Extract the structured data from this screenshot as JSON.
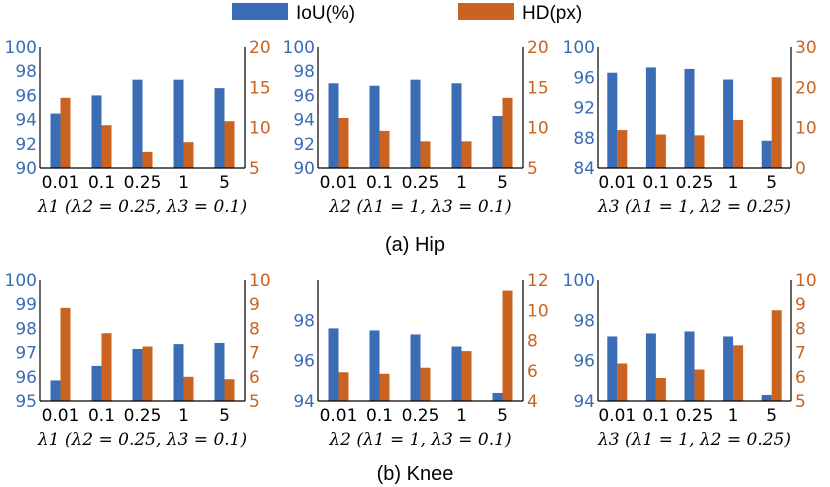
{
  "legend": [
    {
      "label": "IoU(%)",
      "color": "#3a6db5"
    },
    {
      "label": "HD(px)",
      "color": "#c9631f"
    }
  ],
  "captions": [
    "(a) Hip",
    "(b) Knee"
  ],
  "colors": {
    "iou": "#3a6db5",
    "hd": "#c9631f",
    "axis": "#000000"
  },
  "chart_data": [
    {
      "type": "bar",
      "group": "Hip",
      "categories": [
        "0.01",
        "0.1",
        "0.25",
        "1",
        "5"
      ],
      "xlabel": "λ1 (λ2 = 0.25, λ3 = 0.1)",
      "series": [
        {
          "name": "IoU(%)",
          "axis": "left",
          "values": [
            94.5,
            96.0,
            97.3,
            97.3,
            96.6
          ]
        },
        {
          "name": "HD(px)",
          "axis": "right",
          "values": [
            13.7,
            10.3,
            7.0,
            8.2,
            10.8
          ]
        }
      ],
      "ylim_left": [
        90,
        100
      ],
      "yticks_left": [
        90,
        92,
        94,
        96,
        98,
        100
      ],
      "ylim_right": [
        5,
        20
      ],
      "yticks_right": [
        5,
        10,
        15,
        20
      ]
    },
    {
      "type": "bar",
      "group": "Hip",
      "categories": [
        "0.01",
        "0.1",
        "0.25",
        "1",
        "5"
      ],
      "xlabel": "λ2 (λ1 = 1, λ3 = 0.1)",
      "series": [
        {
          "name": "IoU(%)",
          "axis": "left",
          "values": [
            97.0,
            96.8,
            97.3,
            97.0,
            94.3
          ]
        },
        {
          "name": "HD(px)",
          "axis": "right",
          "values": [
            11.2,
            9.6,
            8.3,
            8.3,
            13.7
          ]
        }
      ],
      "ylim_left": [
        90,
        100
      ],
      "yticks_left": [
        90,
        92,
        94,
        96,
        98,
        100
      ],
      "ylim_right": [
        5,
        20
      ],
      "yticks_right": [
        5,
        10,
        15,
        20
      ]
    },
    {
      "type": "bar",
      "group": "Hip",
      "categories": [
        "0.01",
        "0.1",
        "0.25",
        "1",
        "5"
      ],
      "xlabel": "λ3 (λ1 = 1, λ2 = 0.25)",
      "series": [
        {
          "name": "IoU(%)",
          "axis": "left",
          "values": [
            96.6,
            97.3,
            97.1,
            95.7,
            87.6
          ]
        },
        {
          "name": "HD(px)",
          "axis": "right",
          "values": [
            9.4,
            8.3,
            8.1,
            11.9,
            22.5
          ]
        }
      ],
      "ylim_left": [
        84,
        100
      ],
      "yticks_left": [
        84,
        88,
        92,
        96,
        100
      ],
      "ylim_right": [
        0,
        30
      ],
      "yticks_right": [
        0,
        10,
        20,
        30
      ]
    },
    {
      "type": "bar",
      "group": "Knee",
      "categories": [
        "0.01",
        "0.1",
        "0.25",
        "1",
        "5"
      ],
      "xlabel": "λ1 (λ2 = 0.25, λ3 = 0.1)",
      "series": [
        {
          "name": "IoU(%)",
          "axis": "left",
          "values": [
            95.85,
            96.45,
            97.15,
            97.35,
            97.4
          ]
        },
        {
          "name": "HD(px)",
          "axis": "right",
          "values": [
            8.85,
            7.8,
            7.25,
            6.0,
            5.9
          ]
        }
      ],
      "ylim_left": [
        95,
        100
      ],
      "yticks_left": [
        95,
        96,
        97,
        98,
        99,
        100
      ],
      "ylim_right": [
        5,
        10
      ],
      "yticks_right": [
        5,
        6,
        7,
        8,
        9,
        10
      ]
    },
    {
      "type": "bar",
      "group": "Knee",
      "categories": [
        "0.01",
        "0.1",
        "0.25",
        "1",
        "5"
      ],
      "xlabel": "λ2 (λ1 = 1, λ3 = 0.1)",
      "series": [
        {
          "name": "IoU(%)",
          "axis": "left",
          "values": [
            97.6,
            97.5,
            97.3,
            96.7,
            94.4
          ]
        },
        {
          "name": "HD(px)",
          "axis": "right",
          "values": [
            5.9,
            5.8,
            6.2,
            7.3,
            11.3
          ]
        }
      ],
      "ylim_left": [
        94,
        100
      ],
      "yticks_left": [
        94,
        96,
        98
      ],
      "ylim_right": [
        4,
        12
      ],
      "yticks_right": [
        4,
        6,
        8,
        10,
        12
      ]
    },
    {
      "type": "bar",
      "group": "Knee",
      "categories": [
        "0.01",
        "0.1",
        "0.25",
        "1",
        "5"
      ],
      "xlabel": "λ3 (λ1 = 1, λ2 = 0.25)",
      "series": [
        {
          "name": "IoU(%)",
          "axis": "left",
          "values": [
            97.2,
            97.35,
            97.45,
            97.2,
            94.3
          ]
        },
        {
          "name": "HD(px)",
          "axis": "right",
          "values": [
            6.55,
            5.95,
            6.3,
            7.3,
            8.75
          ]
        }
      ],
      "ylim_left": [
        94,
        100
      ],
      "yticks_left": [
        94,
        96,
        98,
        100
      ],
      "ylim_right": [
        5,
        10
      ],
      "yticks_right": [
        5,
        6,
        7,
        8,
        9,
        10
      ]
    }
  ]
}
